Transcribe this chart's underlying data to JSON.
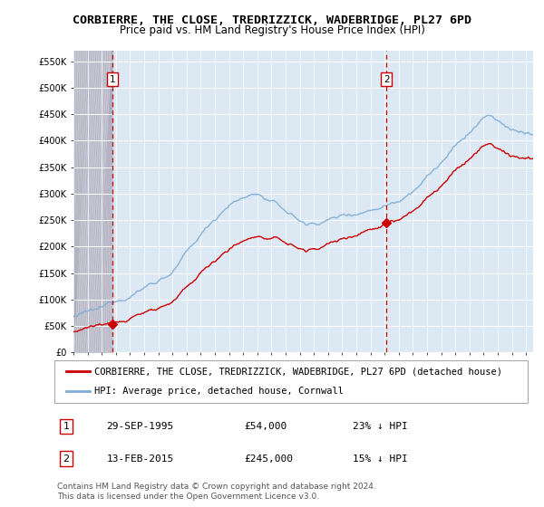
{
  "title": "CORBIERRE, THE CLOSE, TREDRIZZICK, WADEBRIDGE, PL27 6PD",
  "subtitle": "Price paid vs. HM Land Registry's House Price Index (HPI)",
  "ylim": [
    0,
    570000
  ],
  "xlim_start": 1993.0,
  "xlim_end": 2025.5,
  "bg_light": "#dde8f5",
  "bg_hatch": "#d0d0d8",
  "grid_color": "#ffffff",
  "sale1_x": 1995.747,
  "sale1_y": 54000,
  "sale1_label": "1",
  "sale1_date": "29-SEP-1995",
  "sale1_price": "£54,000",
  "sale1_hpi": "23% ↓ HPI",
  "sale2_x": 2015.12,
  "sale2_y": 245000,
  "sale2_label": "2",
  "sale2_date": "13-FEB-2015",
  "sale2_price": "£245,000",
  "sale2_hpi": "15% ↓ HPI",
  "line1_label": "CORBIERRE, THE CLOSE, TREDRIZZICK, WADEBRIDGE, PL27 6PD (detached house)",
  "line2_label": "HPI: Average price, detached house, Cornwall",
  "footnote": "Contains HM Land Registry data © Crown copyright and database right 2024.\nThis data is licensed under the Open Government Licence v3.0.",
  "sale_color": "#cc0000",
  "hpi_color": "#7dadd4",
  "vline_color": "#cc0000",
  "title_fontsize": 9.5,
  "subtitle_fontsize": 8.5,
  "tick_fontsize": 7,
  "legend_fontsize": 7.5,
  "table_fontsize": 8
}
